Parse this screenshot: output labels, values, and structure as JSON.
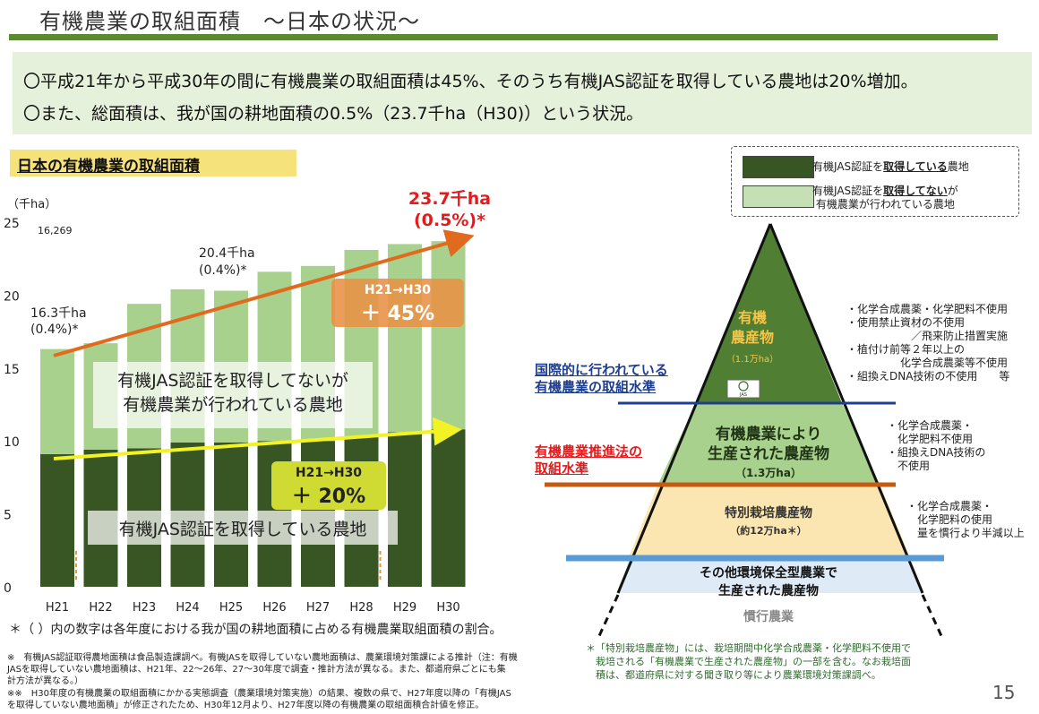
{
  "header": {
    "title": "有機農業の取組面積　～日本の状況～",
    "summary": [
      "〇平成21年から平成30年の間に有機農業の取組面積は45%、そのうち有機JAS認証を取得している農地は20%増加。",
      "〇また、総面積は、我が国の耕地面積の0.5%（23.7千ha（H30)）という状況。"
    ]
  },
  "section": {
    "heading": "日本の有機農業の取組面積"
  },
  "chart_data": {
    "type": "bar",
    "stacked": true,
    "ylabel": "（千ha）",
    "ylim": [
      0,
      25
    ],
    "yticks": [
      "0",
      "5",
      "10",
      "15",
      "20",
      "25"
    ],
    "categories": [
      "H21",
      "H22",
      "H23",
      "H24",
      "H25",
      "H26",
      "H27",
      "H28",
      "H29",
      "H30"
    ],
    "series": [
      {
        "values": [
          9.1,
          9.4,
          9.5,
          9.9,
          9.9,
          10.0,
          10.0,
          10.3,
          10.6,
          10.8
        ],
        "color": "#375623"
      },
      {
        "values": [
          7.2,
          7.3,
          9.9,
          10.5,
          10.4,
          11.6,
          12.0,
          12.8,
          12.9,
          12.9
        ],
        "color": "#a9d18e"
      }
    ],
    "annotations": {
      "small_value": "16,269",
      "h21_label": [
        "16.3千ha",
        "(0.4%)*"
      ],
      "mid_label": [
        "20.4千ha",
        "(0.4%)*"
      ],
      "h30_label": [
        "23.7千ha",
        "(0.5%)*"
      ]
    },
    "trend_increase": {
      "label": "H21→H30",
      "value": "＋ 45%"
    },
    "jas_increase": {
      "label": "H21→H30",
      "value": "＋ 20%"
    },
    "band_labels": {
      "upper": [
        "有機JAS認証を取得してないが",
        "有機農業が行われている農地"
      ],
      "lower": "有機JAS認証を取得している農地"
    }
  },
  "notes": {
    "main": "＊（ ）内の数字は各年度における我が国の耕地面積に占める有機農業取組面積の割合。",
    "small1": [
      "※　有機JAS認証取得農地面積は食品製造課調べ。有機JASを取得していない農地面積は、農業環境対策課による推計（注：有機",
      "JASを取得していない農地面積は、H21年、22～26年、27～30年度で調査・推計方法が異なる。また、都道府県ごとにも集",
      "計方法が異なる。）"
    ],
    "small2": [
      "※※　H30年度の有機農業の取組面積にかかる実態調査（農業環境対策実施）の結果、複数の県で、H27年度以降の「有機JAS",
      "を取得していない農地面積」が修正されたため、H30年12月より、H27年度以降の有機農業の取組面積合計値を修正。"
    ]
  },
  "legend": {
    "item1": {
      "prefix": "有機JAS認証を",
      "strong": "取得している",
      "suffix": "農地",
      "color": "#375623"
    },
    "item2": {
      "prefix": "有機JAS認証を",
      "strong": "取得してない",
      "suffix": "が",
      "line2": "有機農業が行われている農地",
      "color": "#c5e0b4"
    }
  },
  "pyramid": {
    "tier1": {
      "title1": "有機",
      "title2": "農産物",
      "sub": "（1.1万ha）",
      "logo_text": "JAS"
    },
    "tier2": {
      "title1": "有機農業により",
      "title2": "生産された農産物",
      "sub": "（1.3万ha）"
    },
    "tier3": {
      "title": "特別栽培農産物",
      "sub": "（約12万ha＊）"
    },
    "tier4": {
      "title1": "その他環境保全型農業で",
      "title2": "生産された農産物"
    },
    "tier5": {
      "title": "慣行農業"
    },
    "left_intl": [
      "国際的に行われている",
      "有機農業の取組水準"
    ],
    "left_law": [
      "有機農業推進法の",
      "取組水準"
    ],
    "right1": "・化学合成農薬・化学肥料不使用\n・使用禁止資材の不使用\n　　　　　　／飛来防止措置実施\n・植付け前等２年以上の\n　　　　　化学合成農薬等不使用\n・組換えDNA技術の不使用　　等",
    "right2": "・化学合成農薬・\n　化学肥料不使用\n・組換えDNA技術の\n　不使用",
    "right3": "・化学合成農薬・\n　化学肥料の使用\n　量を慣行より半減以上",
    "note": "＊「特別栽培農産物」には、栽培期間中化学合成農薬・化学肥料不使用で\n　栽培される「有機農業で生産された農産物」の一部を含む。なお栽培面\n　積は、都道府県に対する聞き取り等により農業環境対策課調べ。"
  },
  "page_number": "15"
}
